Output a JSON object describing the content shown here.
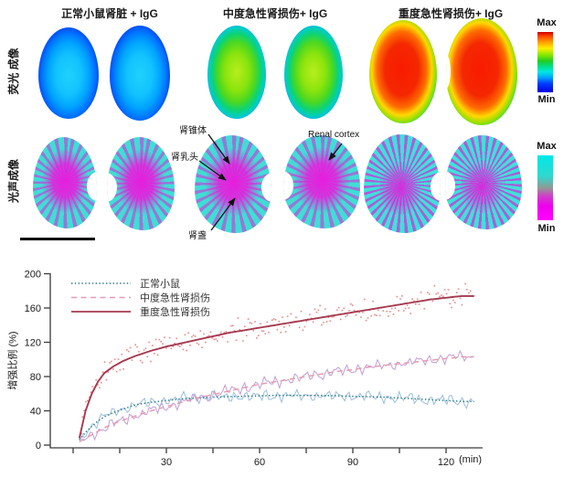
{
  "figure": {
    "columns": [
      {
        "title": "正常小鼠肾脏 + IgG"
      },
      {
        "title": "中度急性肾损伤+ IgG"
      },
      {
        "title": "重度急性肾损伤+ IgG"
      }
    ],
    "row_labels": {
      "fluorescence": "荧光 成像",
      "photoacoustic": "光声成像"
    },
    "colorbars": {
      "fluorescence": {
        "max": "Max",
        "min": "Min",
        "colors": [
          "#cc0000",
          "#ff9900",
          "#ffee00",
          "#22cc22",
          "#00e8e0",
          "#00a0ff",
          "#0000dd"
        ]
      },
      "photoacoustic": {
        "max": "Max",
        "min": "Min",
        "colors": [
          "#00e8e8",
          "#909a94",
          "#ff00ff"
        ]
      }
    },
    "annotations": [
      {
        "label": "肾锥体"
      },
      {
        "label": "肾乳头"
      },
      {
        "label": "Renal cortex"
      },
      {
        "label": "肾盏"
      }
    ]
  },
  "chart_data": {
    "type": "line",
    "title": "",
    "xlabel": "(min)",
    "ylabel": "增强比例 (%)",
    "xlim": [
      0,
      135
    ],
    "ylim": [
      0,
      200
    ],
    "x_ticks": [
      0,
      15,
      30,
      45,
      60,
      75,
      90,
      105,
      120
    ],
    "x_tick_labels": [
      30,
      60,
      90,
      120
    ],
    "y_ticks": [
      0,
      40,
      80,
      120,
      160,
      200
    ],
    "grid": false,
    "legend_position": "top-left",
    "series": [
      {
        "name": "正常小鼠",
        "style": "dotted",
        "color": "#2a7a8c",
        "noisy_color": "#9dbfdc",
        "noise_amp": 8,
        "x": [
          2,
          4,
          6,
          8,
          10,
          13,
          16,
          20,
          25,
          30,
          35,
          40,
          45,
          50,
          55,
          60,
          65,
          70,
          75,
          80,
          85,
          90,
          95,
          100,
          105,
          110,
          115,
          120,
          125
        ],
        "values": [
          6,
          15,
          22,
          28,
          33,
          38,
          42,
          47,
          50,
          52,
          54,
          55,
          56,
          56.5,
          57,
          57.5,
          58,
          58,
          58,
          58,
          57.5,
          57,
          56.5,
          56,
          55,
          54,
          53,
          52,
          51
        ]
      },
      {
        "name": "中度急性肾损伤",
        "style": "dashed",
        "color": "#e49cb0",
        "noisy_color": "#c09ed6",
        "noise_amp": 8,
        "x": [
          2,
          4,
          6,
          8,
          10,
          13,
          16,
          20,
          25,
          30,
          35,
          40,
          45,
          50,
          55,
          60,
          65,
          70,
          75,
          80,
          85,
          90,
          95,
          100,
          105,
          110,
          115,
          120,
          125
        ],
        "values": [
          4,
          8,
          12,
          16,
          20,
          25,
          29,
          34,
          40,
          45,
          50,
          55,
          59,
          63,
          67,
          71,
          74,
          77,
          80,
          83,
          86,
          88,
          91,
          93,
          95,
          97,
          99,
          101,
          103
        ]
      },
      {
        "name": "重度急性肾损伤",
        "style": "solid",
        "color": "#a63a50",
        "scatter_color": "#e68a8a",
        "noise_amp": 12,
        "x": [
          2,
          4,
          6,
          8,
          10,
          13,
          16,
          20,
          25,
          30,
          35,
          40,
          45,
          50,
          55,
          60,
          65,
          70,
          75,
          80,
          85,
          90,
          95,
          100,
          105,
          110,
          115,
          120,
          125
        ],
        "values": [
          8,
          40,
          60,
          74,
          84,
          92,
          98,
          104,
          110,
          115,
          119,
          123,
          127,
          131,
          134,
          137,
          140,
          143,
          146,
          149,
          152,
          155,
          158,
          161,
          164,
          167,
          170,
          172,
          174
        ]
      }
    ]
  }
}
